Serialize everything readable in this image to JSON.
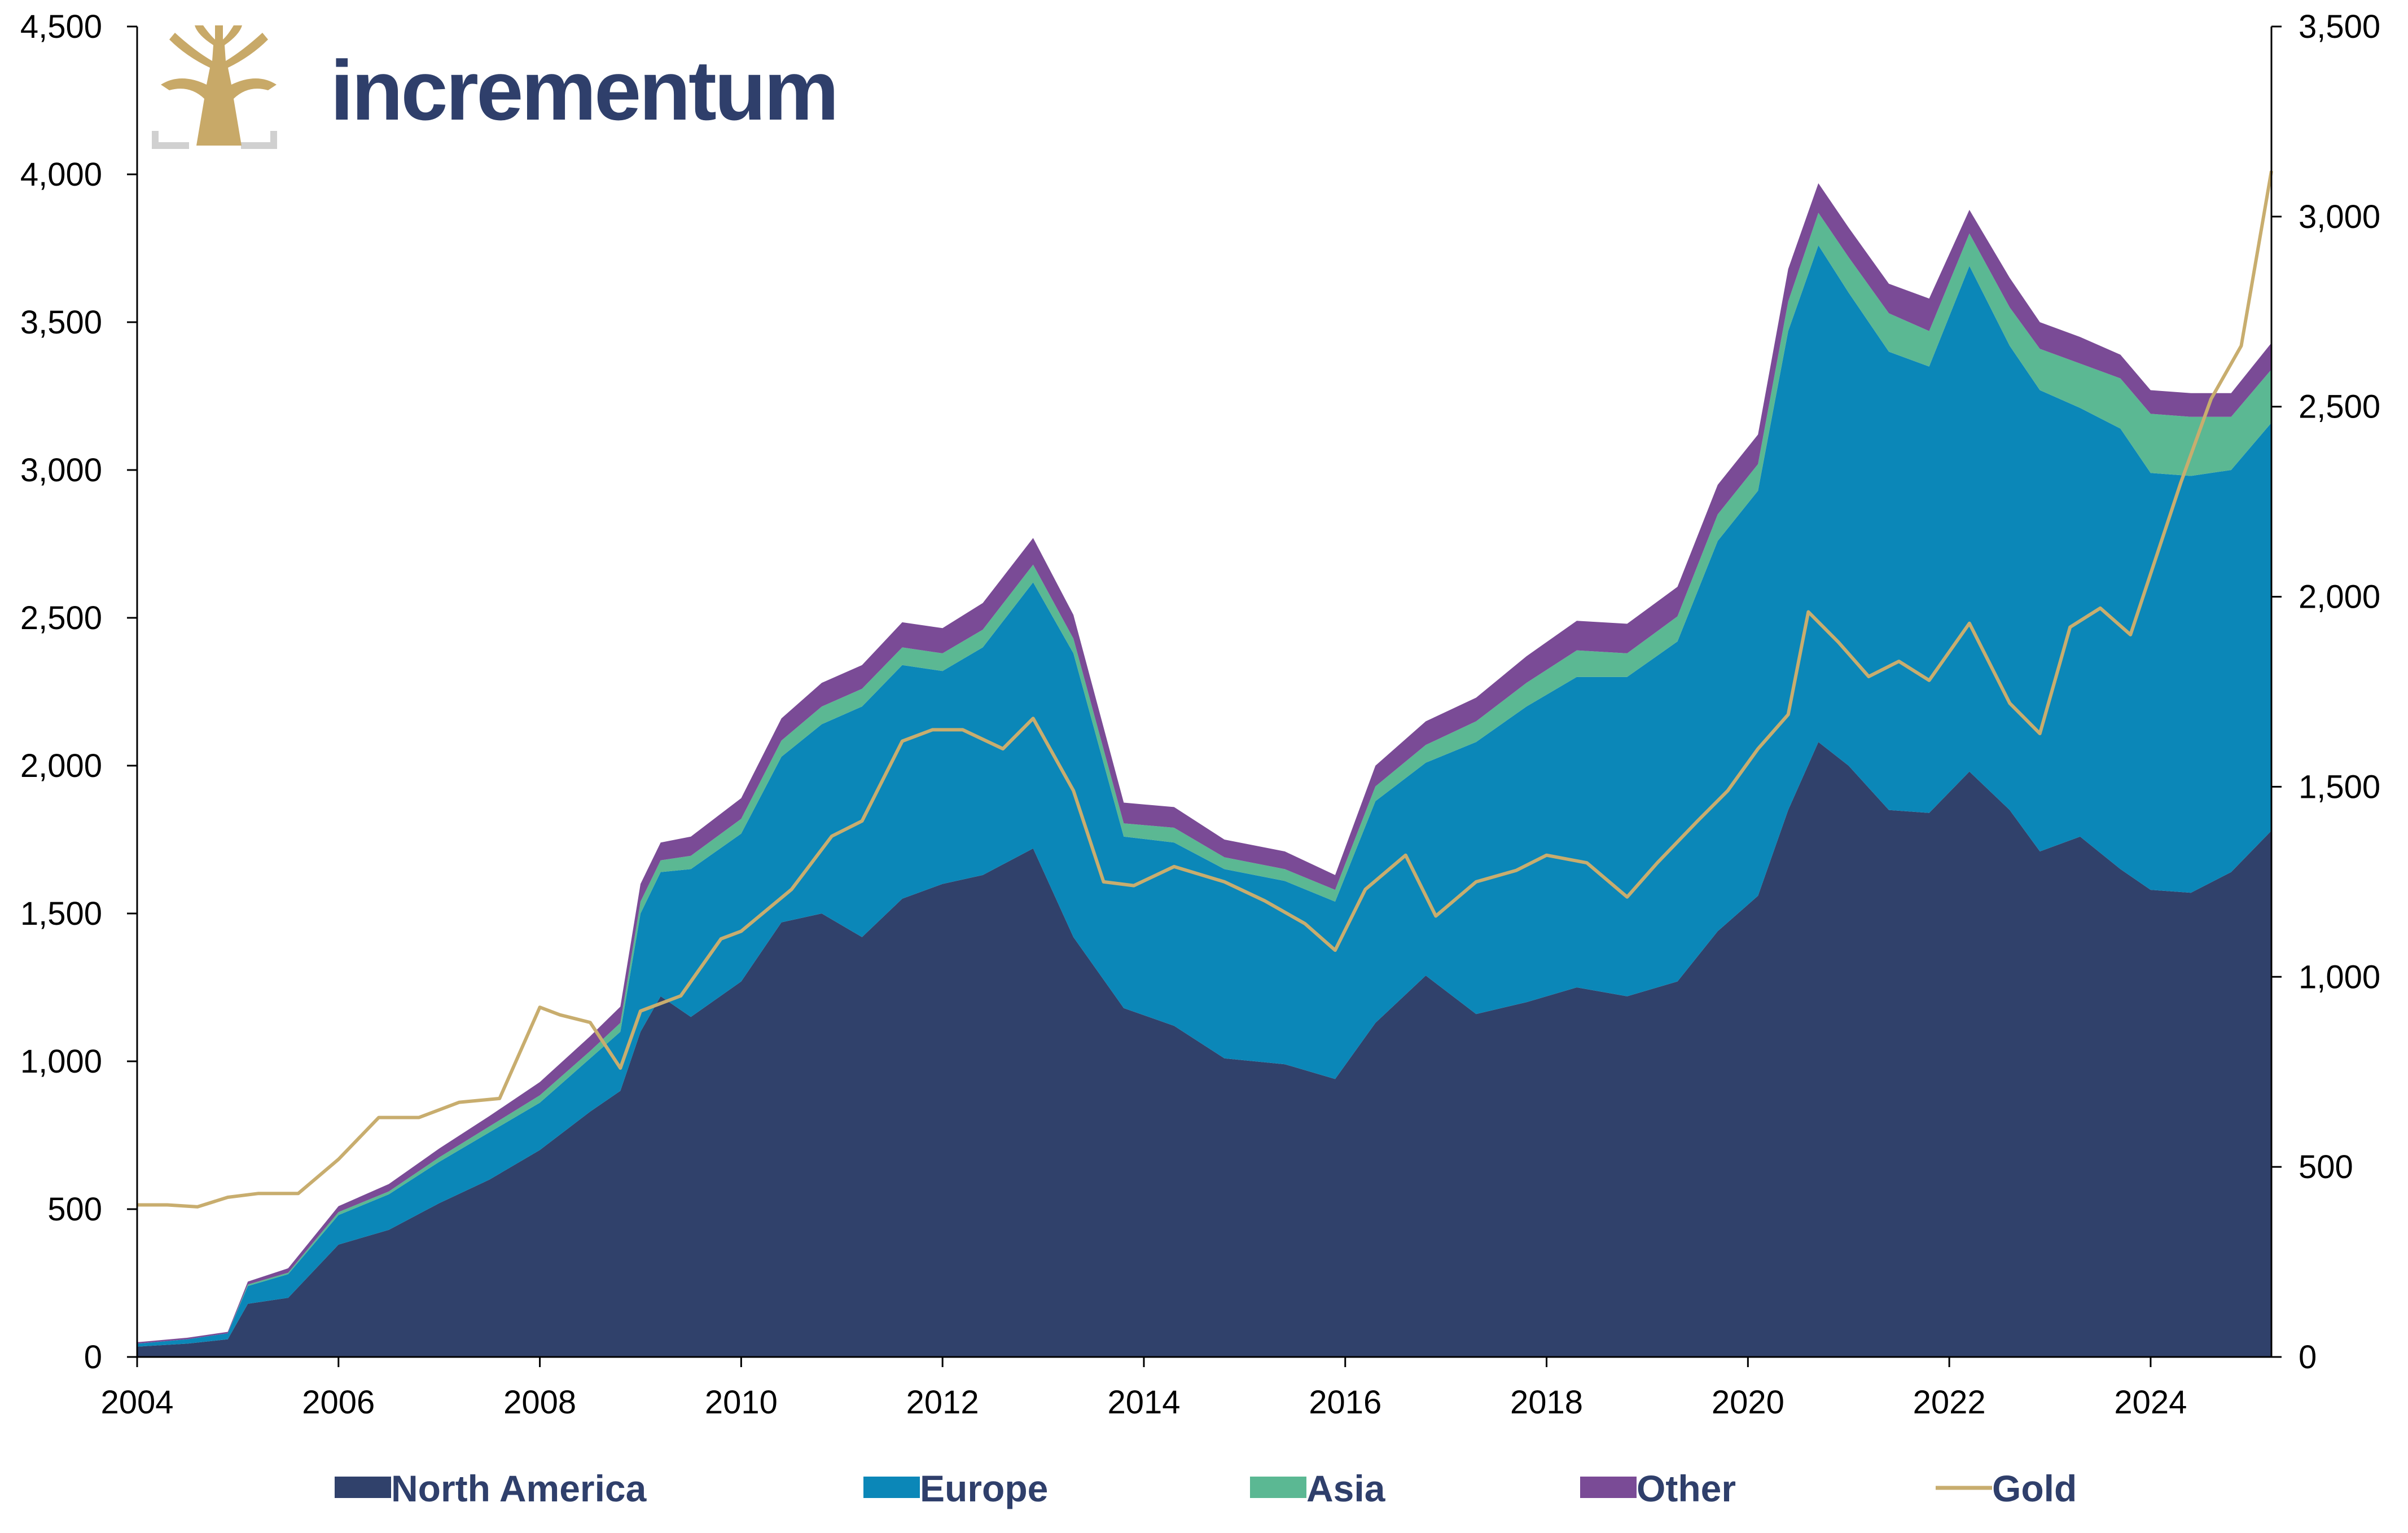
{
  "brand": {
    "name": "incrementum"
  },
  "colors": {
    "north_america": "#30416b",
    "europe": "#0b87b8",
    "asia": "#5bb893",
    "other": "#7a4b96",
    "gold": "#c8ad6e",
    "logo_tree": "#c8a968",
    "logo_frame": "#d0d0d0"
  },
  "chart_data": {
    "type": "area",
    "stacked": true,
    "x_range": [
      2004,
      2025.2
    ],
    "left_axis": {
      "ylim": [
        0,
        4500
      ],
      "ticks": [
        "0",
        "500",
        "1,000",
        "1,500",
        "2,000",
        "2,500",
        "3,000",
        "3,500",
        "4,000",
        "4,500"
      ]
    },
    "right_axis": {
      "ylim": [
        0,
        3500
      ],
      "ticks": [
        "0",
        "500",
        "1,000",
        "1,500",
        "2,000",
        "2,500",
        "3,000",
        "3,500"
      ]
    },
    "x_ticks": [
      "2004",
      "2006",
      "2008",
      "2010",
      "2012",
      "2014",
      "2016",
      "2018",
      "2020",
      "2022",
      "2024"
    ],
    "legend_position": "bottom",
    "x": [
      2004.0,
      2004.5,
      2004.9,
      2005.1,
      2005.5,
      2006.0,
      2006.5,
      2007.0,
      2007.5,
      2008.0,
      2008.5,
      2008.8,
      2009.0,
      2009.2,
      2009.5,
      2010.0,
      2010.4,
      2010.8,
      2011.2,
      2011.6,
      2012.0,
      2012.4,
      2012.9,
      2013.3,
      2013.8,
      2014.3,
      2014.8,
      2015.4,
      2015.9,
      2016.3,
      2016.8,
      2017.3,
      2017.8,
      2018.3,
      2018.8,
      2019.3,
      2019.7,
      2020.1,
      2020.4,
      2020.7,
      2021.0,
      2021.4,
      2021.8,
      2022.2,
      2022.6,
      2022.9,
      2023.3,
      2023.7,
      2024.0,
      2024.4,
      2024.8,
      2025.2
    ],
    "series": [
      {
        "name": "North America",
        "axis": "left",
        "values": [
          35,
          45,
          60,
          180,
          200,
          380,
          430,
          520,
          600,
          700,
          830,
          900,
          1100,
          1220,
          1150,
          1270,
          1470,
          1500,
          1420,
          1550,
          1600,
          1630,
          1720,
          1420,
          1180,
          1120,
          1010,
          990,
          940,
          1130,
          1290,
          1160,
          1200,
          1250,
          1220,
          1270,
          1440,
          1560,
          1850,
          2080,
          2000,
          1850,
          1840,
          1980,
          1850,
          1710,
          1760,
          1650,
          1580,
          1570,
          1640,
          1780
        ]
      },
      {
        "name": "Europe",
        "axis": "left",
        "values": [
          10,
          15,
          20,
          60,
          80,
          100,
          120,
          140,
          160,
          160,
          180,
          200,
          400,
          420,
          500,
          500,
          560,
          640,
          780,
          790,
          720,
          770,
          900,
          960,
          580,
          620,
          640,
          620,
          600,
          750,
          720,
          920,
          1000,
          1050,
          1080,
          1150,
          1320,
          1370,
          1620,
          1680,
          1600,
          1550,
          1510,
          1710,
          1570,
          1560,
          1450,
          1490,
          1410,
          1410,
          1360,
          1380
        ]
      },
      {
        "name": "Asia",
        "axis": "left",
        "values": [
          0,
          0,
          0,
          5,
          5,
          10,
          10,
          15,
          20,
          25,
          25,
          30,
          40,
          40,
          45,
          50,
          55,
          60,
          60,
          60,
          60,
          60,
          60,
          50,
          45,
          50,
          40,
          40,
          40,
          50,
          60,
          70,
          80,
          90,
          80,
          85,
          90,
          90,
          100,
          110,
          120,
          130,
          120,
          110,
          130,
          140,
          150,
          170,
          200,
          200,
          180,
          180
        ]
      },
      {
        "name": "Other",
        "axis": "left",
        "values": [
          5,
          5,
          5,
          10,
          15,
          20,
          25,
          30,
          35,
          45,
          50,
          55,
          60,
          60,
          65,
          70,
          75,
          80,
          80,
          85,
          85,
          90,
          90,
          80,
          70,
          70,
          60,
          60,
          50,
          70,
          80,
          80,
          90,
          100,
          100,
          100,
          100,
          100,
          110,
          100,
          100,
          100,
          110,
          80,
          100,
          90,
          90,
          80,
          80,
          80,
          80,
          90
        ]
      }
    ],
    "gold": {
      "name": "Gold",
      "axis": "right",
      "x": [
        2004.0,
        2004.3,
        2004.6,
        2004.9,
        2005.2,
        2005.6,
        2006.0,
        2006.4,
        2006.8,
        2007.2,
        2007.6,
        2008.0,
        2008.2,
        2008.5,
        2008.8,
        2009.0,
        2009.4,
        2009.8,
        2010.0,
        2010.5,
        2010.9,
        2011.2,
        2011.6,
        2011.9,
        2012.2,
        2012.6,
        2012.9,
        2013.3,
        2013.6,
        2013.9,
        2014.3,
        2014.8,
        2015.2,
        2015.6,
        2015.9,
        2016.2,
        2016.6,
        2016.9,
        2017.3,
        2017.7,
        2018.0,
        2018.4,
        2018.8,
        2019.1,
        2019.5,
        2019.8,
        2020.1,
        2020.4,
        2020.6,
        2020.9,
        2021.2,
        2021.5,
        2021.8,
        2022.2,
        2022.6,
        2022.9,
        2023.2,
        2023.5,
        2023.8,
        2024.0,
        2024.3,
        2024.6,
        2024.9,
        2025.2
      ],
      "values": [
        400,
        400,
        395,
        420,
        430,
        430,
        520,
        630,
        630,
        670,
        680,
        920,
        900,
        880,
        760,
        910,
        950,
        1100,
        1120,
        1230,
        1370,
        1410,
        1620,
        1650,
        1650,
        1600,
        1680,
        1490,
        1250,
        1240,
        1290,
        1250,
        1200,
        1140,
        1070,
        1230,
        1320,
        1160,
        1250,
        1280,
        1320,
        1300,
        1210,
        1300,
        1410,
        1490,
        1600,
        1690,
        1960,
        1880,
        1790,
        1830,
        1780,
        1930,
        1720,
        1640,
        1920,
        1970,
        1900,
        2060,
        2300,
        2520,
        2660,
        3120
      ]
    }
  },
  "legend": [
    {
      "label": "North America",
      "kind": "swatch",
      "color_key": "north_america"
    },
    {
      "label": "Europe",
      "kind": "swatch",
      "color_key": "europe"
    },
    {
      "label": "Asia",
      "kind": "swatch",
      "color_key": "asia"
    },
    {
      "label": "Other",
      "kind": "swatch",
      "color_key": "other"
    },
    {
      "label": "Gold",
      "kind": "line",
      "color_key": "gold"
    }
  ]
}
